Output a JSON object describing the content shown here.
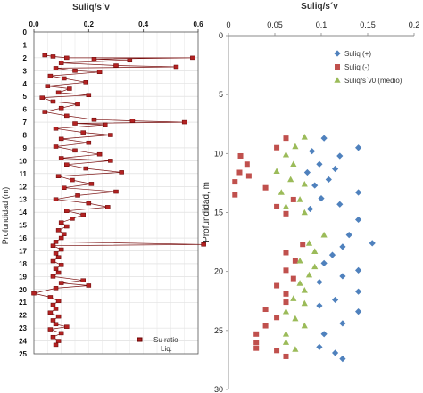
{
  "chart_data": [
    {
      "type": "scatter",
      "title": "Suliq/s´v",
      "xlabel": "",
      "ylabel": "Profundidad (m)",
      "xlim": [
        0,
        0.6
      ],
      "ylim": [
        0,
        25
      ],
      "y_reversed": true,
      "x_ticks": [
        "0.0",
        "0.2",
        "0.4",
        "0.6"
      ],
      "x_tick_values": [
        0,
        0.2,
        0.4,
        0.6
      ],
      "y_ticks": [
        "0",
        "1",
        "2",
        "3",
        "4",
        "5",
        "6",
        "7",
        "8",
        "9",
        "10",
        "11",
        "12",
        "13",
        "14",
        "15",
        "16",
        "17",
        "18",
        "19",
        "20",
        "21",
        "22",
        "23",
        "24",
        "25"
      ],
      "grid": true,
      "legend_position": "bottom-right",
      "series": [
        {
          "name": "Su ratio Liq.",
          "color": "#b22222",
          "points": [
            [
              0.04,
              1.8
            ],
            [
              0.07,
              1.9
            ],
            [
              0.12,
              2.0
            ],
            [
              0.22,
              2.1
            ],
            [
              0.35,
              2.2
            ],
            [
              0.58,
              2.0
            ],
            [
              0.1,
              2.4
            ],
            [
              0.3,
              2.6
            ],
            [
              0.52,
              2.7
            ],
            [
              0.08,
              2.8
            ],
            [
              0.15,
              3.0
            ],
            [
              0.24,
              3.1
            ],
            [
              0.06,
              3.4
            ],
            [
              0.11,
              3.6
            ],
            [
              0.19,
              3.9
            ],
            [
              0.05,
              4.2
            ],
            [
              0.13,
              4.4
            ],
            [
              0.09,
              4.7
            ],
            [
              0.2,
              4.9
            ],
            [
              0.03,
              5.1
            ],
            [
              0.07,
              5.4
            ],
            [
              0.16,
              5.6
            ],
            [
              0.1,
              5.9
            ],
            [
              0.04,
              6.2
            ],
            [
              0.12,
              6.5
            ],
            [
              0.22,
              6.8
            ],
            [
              0.36,
              6.9
            ],
            [
              0.55,
              7.0
            ],
            [
              0.15,
              7.1
            ],
            [
              0.26,
              7.2
            ],
            [
              0.08,
              7.5
            ],
            [
              0.18,
              7.8
            ],
            [
              0.28,
              8.0
            ],
            [
              0.1,
              8.3
            ],
            [
              0.2,
              8.6
            ],
            [
              0.08,
              8.9
            ],
            [
              0.15,
              9.2
            ],
            [
              0.24,
              9.5
            ],
            [
              0.1,
              9.8
            ],
            [
              0.28,
              10.0
            ],
            [
              0.12,
              10.3
            ],
            [
              0.19,
              10.6
            ],
            [
              0.32,
              10.9
            ],
            [
              0.09,
              11.2
            ],
            [
              0.14,
              11.5
            ],
            [
              0.21,
              11.8
            ],
            [
              0.11,
              12.1
            ],
            [
              0.3,
              12.4
            ],
            [
              0.16,
              12.7
            ],
            [
              0.08,
              13.0
            ],
            [
              0.2,
              13.3
            ],
            [
              0.27,
              13.6
            ],
            [
              0.12,
              13.9
            ],
            [
              0.18,
              14.2
            ],
            [
              0.14,
              14.5
            ],
            [
              0.1,
              14.8
            ],
            [
              0.12,
              15.1
            ],
            [
              0.09,
              15.4
            ],
            [
              0.11,
              15.7
            ],
            [
              0.1,
              16.0
            ],
            [
              0.08,
              16.3
            ],
            [
              0.62,
              16.5
            ],
            [
              0.07,
              16.6
            ],
            [
              0.1,
              16.9
            ],
            [
              0.08,
              17.2
            ],
            [
              0.09,
              17.5
            ],
            [
              0.07,
              17.8
            ],
            [
              0.1,
              18.1
            ],
            [
              0.08,
              18.4
            ],
            [
              0.09,
              18.7
            ],
            [
              0.07,
              19.0
            ],
            [
              0.18,
              19.3
            ],
            [
              0.1,
              19.5
            ],
            [
              0.2,
              19.7
            ],
            [
              0.08,
              19.9
            ],
            [
              0.0,
              20.3
            ],
            [
              0.06,
              20.6
            ],
            [
              0.09,
              20.9
            ],
            [
              0.07,
              21.2
            ],
            [
              0.08,
              21.5
            ],
            [
              0.06,
              21.8
            ],
            [
              0.09,
              22.1
            ],
            [
              0.07,
              22.4
            ],
            [
              0.08,
              22.7
            ],
            [
              0.12,
              22.9
            ],
            [
              0.06,
              23.1
            ],
            [
              0.1,
              23.4
            ],
            [
              0.07,
              23.7
            ],
            [
              0.09,
              24.0
            ],
            [
              0.08,
              24.3
            ]
          ]
        }
      ]
    },
    {
      "type": "scatter",
      "title": "Suliq/s´v",
      "xlabel": "",
      "ylabel": "Profundidad, m",
      "xlim": [
        0,
        0.2
      ],
      "ylim": [
        0,
        30
      ],
      "y_reversed": true,
      "x_ticks": [
        "0",
        "0.05",
        "0.1",
        "0.15",
        "0.2"
      ],
      "x_tick_values": [
        0,
        0.05,
        0.1,
        0.15,
        0.2
      ],
      "y_ticks": [
        "0",
        "5",
        "10",
        "15",
        "20",
        "25",
        "30"
      ],
      "y_tick_values": [
        0,
        5,
        10,
        15,
        20,
        25,
        30
      ],
      "grid": false,
      "legend_position": "top-right",
      "series": [
        {
          "name": "Suliq (+)",
          "color": "#4f81bd",
          "marker": "diamond",
          "points": [
            [
              0.103,
              8.7
            ],
            [
              0.14,
              9.5
            ],
            [
              0.09,
              9.8
            ],
            [
              0.12,
              10.2
            ],
            [
              0.098,
              10.9
            ],
            [
              0.115,
              11.3
            ],
            [
              0.085,
              11.6
            ],
            [
              0.108,
              12.2
            ],
            [
              0.093,
              12.7
            ],
            [
              0.14,
              13.3
            ],
            [
              0.1,
              13.8
            ],
            [
              0.12,
              14.3
            ],
            [
              0.088,
              14.7
            ],
            [
              0.14,
              15.6
            ],
            [
              0.13,
              16.9
            ],
            [
              0.155,
              17.6
            ],
            [
              0.123,
              17.9
            ],
            [
              0.112,
              18.6
            ],
            [
              0.103,
              19.3
            ],
            [
              0.14,
              19.9
            ],
            [
              0.123,
              20.4
            ],
            [
              0.098,
              20.9
            ],
            [
              0.14,
              21.7
            ],
            [
              0.115,
              22.4
            ],
            [
              0.098,
              22.9
            ],
            [
              0.14,
              23.4
            ],
            [
              0.123,
              24.4
            ],
            [
              0.103,
              25.3
            ],
            [
              0.098,
              26.4
            ],
            [
              0.115,
              26.9
            ],
            [
              0.123,
              27.4
            ]
          ]
        },
        {
          "name": "Suliq (-)",
          "color": "#c0504d",
          "marker": "square",
          "points": [
            [
              0.062,
              8.7
            ],
            [
              0.052,
              9.5
            ],
            [
              0.013,
              10.2
            ],
            [
              0.02,
              10.9
            ],
            [
              0.012,
              11.6
            ],
            [
              0.022,
              11.9
            ],
            [
              0.007,
              12.4
            ],
            [
              0.04,
              12.9
            ],
            [
              0.007,
              13.5
            ],
            [
              0.07,
              13.9
            ],
            [
              0.052,
              14.5
            ],
            [
              0.062,
              15.1
            ],
            [
              0.08,
              17.7
            ],
            [
              0.062,
              18.4
            ],
            [
              0.072,
              19.1
            ],
            [
              0.062,
              19.9
            ],
            [
              0.07,
              20.6
            ],
            [
              0.052,
              21.2
            ],
            [
              0.062,
              21.9
            ],
            [
              0.062,
              22.6
            ],
            [
              0.04,
              23.2
            ],
            [
              0.052,
              23.9
            ],
            [
              0.04,
              24.6
            ],
            [
              0.03,
              25.3
            ],
            [
              0.03,
              26.0
            ],
            [
              0.03,
              26.5
            ],
            [
              0.052,
              26.7
            ],
            [
              0.062,
              27.2
            ]
          ]
        },
        {
          "name": "Suliq/s´v0 (medio)",
          "color": "#9bbb59",
          "marker": "triangle",
          "points": [
            [
              0.082,
              8.6
            ],
            [
              0.072,
              9.4
            ],
            [
              0.062,
              10.1
            ],
            [
              0.07,
              10.9
            ],
            [
              0.052,
              11.5
            ],
            [
              0.067,
              12.2
            ],
            [
              0.082,
              12.6
            ],
            [
              0.057,
              13.3
            ],
            [
              0.077,
              13.9
            ],
            [
              0.062,
              14.5
            ],
            [
              0.082,
              15.0
            ],
            [
              0.103,
              16.9
            ],
            [
              0.087,
              17.6
            ],
            [
              0.093,
              18.3
            ],
            [
              0.077,
              19.1
            ],
            [
              0.093,
              19.6
            ],
            [
              0.087,
              20.3
            ],
            [
              0.077,
              21.0
            ],
            [
              0.082,
              21.6
            ],
            [
              0.07,
              22.3
            ],
            [
              0.082,
              22.7
            ],
            [
              0.062,
              23.4
            ],
            [
              0.072,
              24.0
            ],
            [
              0.082,
              24.6
            ],
            [
              0.062,
              25.3
            ],
            [
              0.062,
              26.0
            ],
            [
              0.072,
              26.6
            ]
          ]
        }
      ]
    }
  ]
}
